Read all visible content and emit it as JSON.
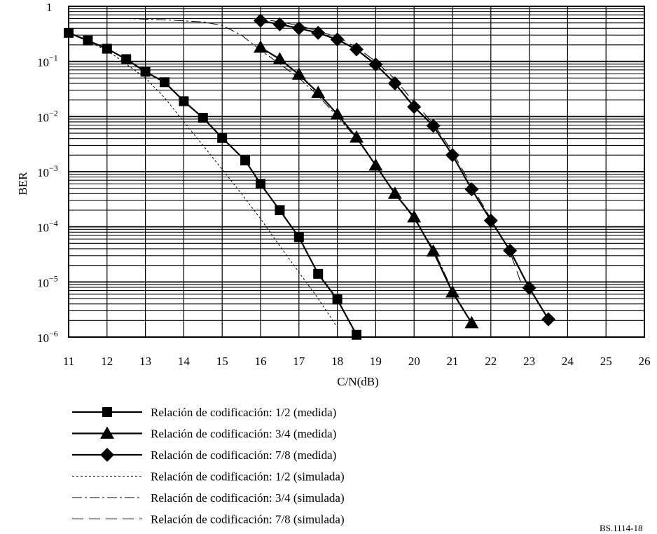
{
  "chart_data": {
    "type": "line",
    "xlabel": "C/N(dB)",
    "ylabel": "BER",
    "x_scale": "linear",
    "y_scale": "log",
    "xlim": [
      11,
      26
    ],
    "ylim": [
      1e-06,
      1
    ],
    "x_ticks": [
      "11",
      "12",
      "13",
      "14",
      "15",
      "16",
      "17",
      "18",
      "19",
      "20",
      "21",
      "22",
      "23",
      "24",
      "25",
      "26"
    ],
    "y_ticks": [
      {
        "base": "1",
        "exp": ""
      },
      {
        "base": "10",
        "exp": "−1"
      },
      {
        "base": "10",
        "exp": "−2"
      },
      {
        "base": "10",
        "exp": "−3"
      },
      {
        "base": "10",
        "exp": "−4"
      },
      {
        "base": "10",
        "exp": "−5"
      },
      {
        "base": "10",
        "exp": "−6"
      }
    ],
    "grid": true,
    "legend_position": "below",
    "series": [
      {
        "name": "Relación de codificación: 1/2 (medida)",
        "style": "solid",
        "marker": "square",
        "x": [
          11,
          11.5,
          12,
          12.5,
          13,
          13.5,
          14,
          14.5,
          15,
          15.6,
          16,
          16.5,
          17,
          17.5,
          18,
          18.5
        ],
        "y": [
          0.33,
          0.24,
          0.17,
          0.11,
          0.065,
          0.042,
          0.019,
          0.0095,
          0.0041,
          0.0016,
          0.0006,
          0.0002,
          6.5e-05,
          1.4e-05,
          4.8e-06,
          1.1e-06
        ]
      },
      {
        "name": "Relación de codificación: 3/4 (medida)",
        "style": "solid",
        "marker": "triangle",
        "x": [
          16,
          16.5,
          17,
          17.5,
          18,
          18.5,
          19,
          19.5,
          20,
          20.5,
          21,
          21.5
        ],
        "y": [
          0.18,
          0.11,
          0.058,
          0.027,
          0.011,
          0.0042,
          0.0013,
          0.0004,
          0.00015,
          3.6e-05,
          6.5e-06,
          1.8e-06
        ]
      },
      {
        "name": "Relación de codificación: 7/8 (medida)",
        "style": "solid",
        "marker": "diamond",
        "x": [
          16,
          16.5,
          17,
          17.5,
          18,
          18.5,
          19,
          19.5,
          20,
          20.5,
          21,
          21.5,
          22,
          22.5,
          23,
          23.5
        ],
        "y": [
          0.55,
          0.47,
          0.4,
          0.33,
          0.25,
          0.165,
          0.088,
          0.04,
          0.015,
          0.0068,
          0.002,
          0.00048,
          0.00013,
          3.7e-05,
          7.8e-06,
          2.1e-06
        ]
      },
      {
        "name": "Relación de codificación: 1/2 (simulada)",
        "style": "dotted",
        "marker": "none",
        "x": [
          11,
          12,
          13,
          13.5,
          14,
          14.5,
          15,
          15.5,
          16,
          16.5,
          17,
          17.5,
          18
        ],
        "y": [
          0.33,
          0.16,
          0.05,
          0.022,
          0.008,
          0.003,
          0.0011,
          0.0004,
          0.00014,
          4.5e-05,
          1.5e-05,
          5e-06,
          1.5e-06
        ]
      },
      {
        "name": "Relación de codificación: 3/4 (simulada)",
        "style": "dashdot",
        "marker": "none",
        "x": [
          11,
          12.5,
          13.5,
          14.5,
          15,
          15.5,
          16,
          16.5,
          17,
          17.5,
          18,
          18.5,
          19,
          19.5,
          20,
          20.5,
          21,
          21.5
        ],
        "y": [
          0.6,
          0.6,
          0.57,
          0.52,
          0.45,
          0.3,
          0.16,
          0.09,
          0.05,
          0.024,
          0.01,
          0.004,
          0.0013,
          0.0004,
          0.00014,
          4e-05,
          7e-06,
          1.8e-06
        ]
      },
      {
        "name": "Relación de codificación: 7/8 (simulada)",
        "style": "longdash",
        "marker": "none",
        "x": [
          11,
          16,
          17,
          18,
          18.5,
          19,
          19.5,
          20,
          20.5,
          21,
          21.5,
          22,
          22.5,
          22.8,
          23,
          23.5
        ],
        "y": [
          0.6,
          0.6,
          0.45,
          0.28,
          0.18,
          0.1,
          0.048,
          0.018,
          0.0075,
          0.0023,
          0.00055,
          0.00014,
          3.5e-05,
          9e-06,
          7.5e-06,
          2.1e-06
        ]
      }
    ]
  },
  "figure_id": "BS.1114-18"
}
